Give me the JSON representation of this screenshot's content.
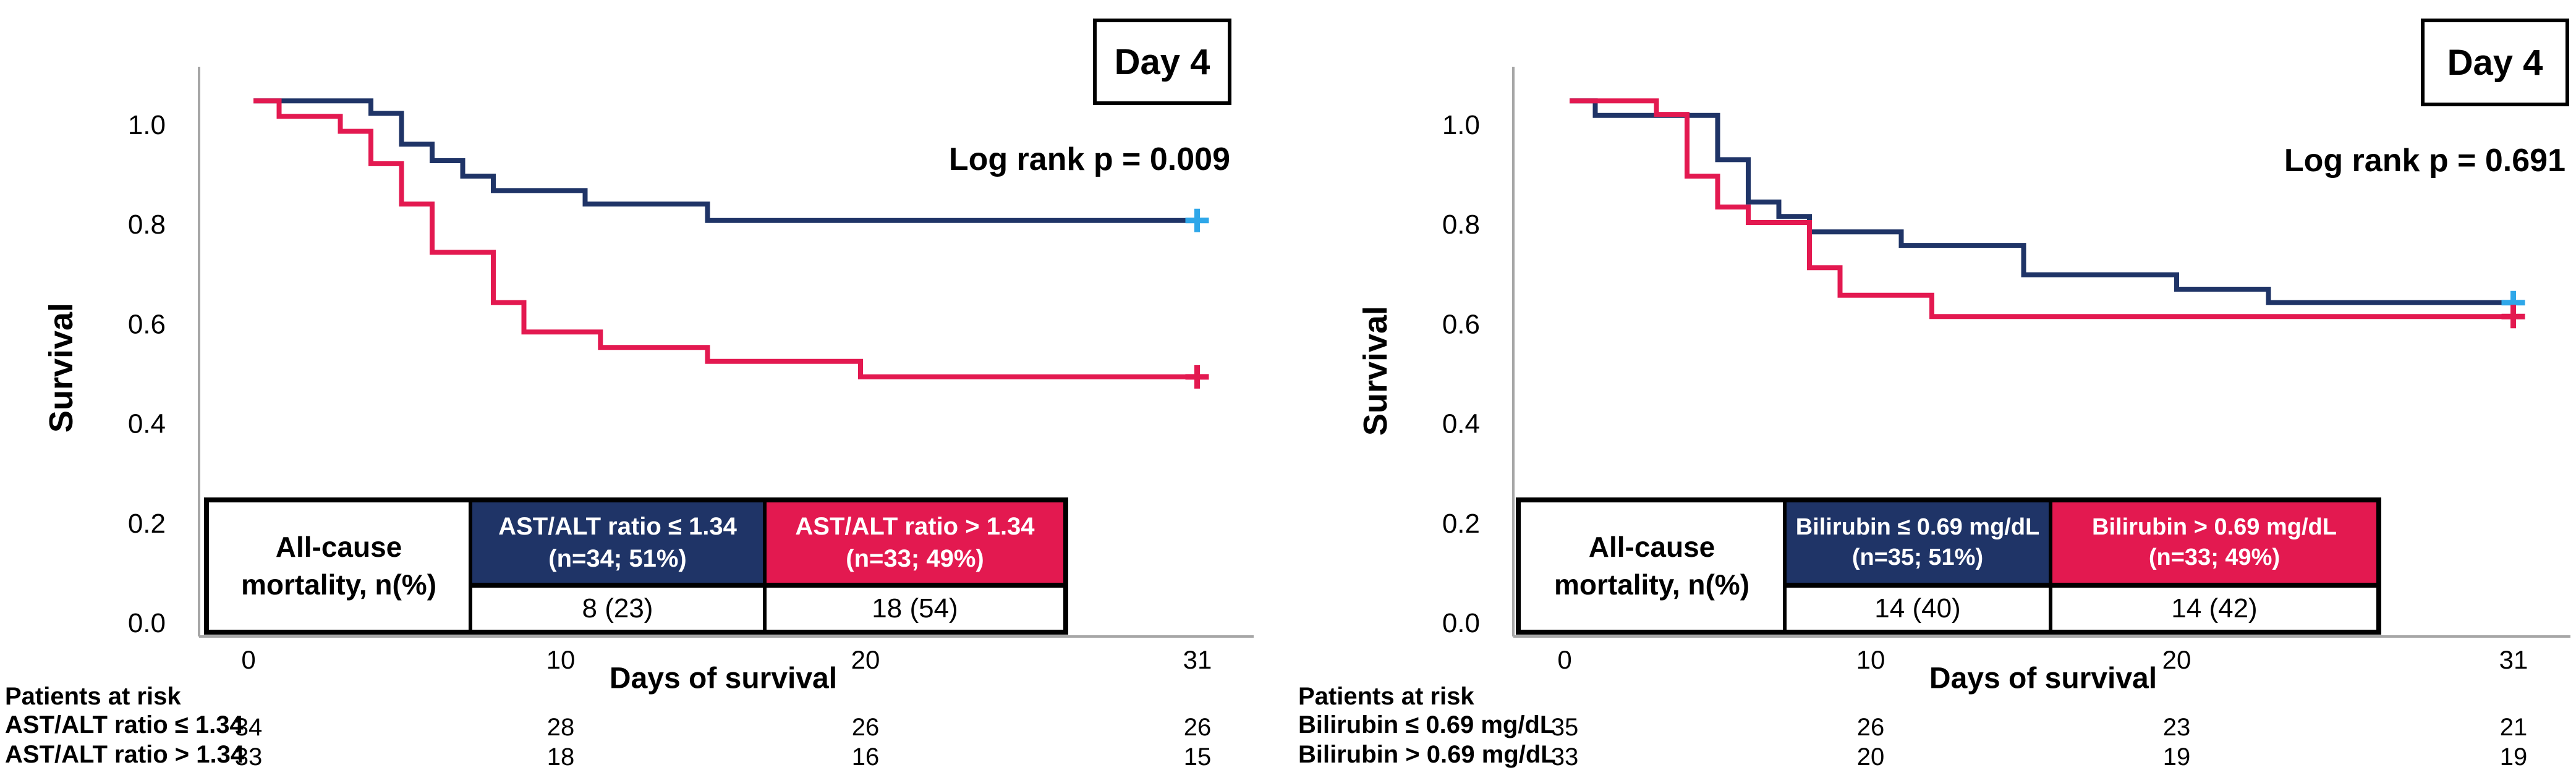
{
  "chart_data": {
    "type": "line",
    "subtype": "kaplan_meier_step",
    "colors": {
      "navy": "#1F3467",
      "crimson": "#E31950",
      "censor_blue": "#2EA7E9",
      "axis_gray": "#A6A6A6"
    },
    "panels": [
      {
        "day_label": "Day 4",
        "log_rank": "Log rank p = 0.009",
        "ylabel": "Survival",
        "xlabel": "Days of survival",
        "ytick_labels": [
          "1.0",
          "0.8",
          "0.6",
          "0.4",
          "0.2",
          "0.0"
        ],
        "ytick_values": [
          1.0,
          0.8,
          0.6,
          0.4,
          0.2,
          0.0
        ],
        "xtick_labels": [
          "0",
          "10",
          "20",
          "31"
        ],
        "xtick_values": [
          0,
          10,
          20,
          31
        ],
        "at_risk_title": "Patients at risk",
        "series": [
          {
            "name": "AST/ALT ratio ≤ 1.34",
            "color_key": "navy",
            "start_level": 1.048,
            "steps": [
              [
                4,
                1.023
              ],
              [
                5,
                0.961
              ],
              [
                6,
                0.928
              ],
              [
                7,
                0.897
              ],
              [
                8,
                0.868
              ],
              [
                11,
                0.841
              ],
              [
                15,
                0.808
              ]
            ],
            "end_day": 31,
            "censored_at_end": true,
            "at_risk": [
              "34",
              "28",
              "26",
              "26"
            ]
          },
          {
            "name": "AST/ALT ratio > 1.34",
            "color_key": "crimson",
            "start_level": 1.048,
            "steps": [
              [
                1,
                1.017
              ],
              [
                3,
                0.987
              ],
              [
                4,
                0.922
              ],
              [
                5,
                0.841
              ],
              [
                6,
                0.744
              ],
              [
                8,
                0.643
              ],
              [
                9,
                0.584
              ],
              [
                11.5,
                0.553
              ],
              [
                15,
                0.525
              ],
              [
                20,
                0.494
              ]
            ],
            "end_day": 31,
            "censored_at_end": true,
            "at_risk": [
              "33",
              "18",
              "16",
              "15"
            ]
          }
        ],
        "table": {
          "row_header_lines": [
            "All-cause",
            "mortality, n(%)"
          ],
          "col_headers": [
            {
              "lines": [
                "AST/ALT ratio ≤ 1.34",
                "(n=34; 51%)"
              ]
            },
            {
              "lines": [
                "AST/ALT ratio > 1.34",
                "(n=33; 49%)"
              ]
            }
          ],
          "values": [
            "8 (23)",
            "18 (54)"
          ]
        }
      },
      {
        "day_label": "Day 4",
        "log_rank": "Log rank p = 0.691",
        "ylabel": "Survival",
        "xlabel": "Days of survival",
        "ytick_labels": [
          "1.0",
          "0.8",
          "0.6",
          "0.4",
          "0.2",
          "0.0"
        ],
        "ytick_values": [
          1.0,
          0.8,
          0.6,
          0.4,
          0.2,
          0.0
        ],
        "xtick_labels": [
          "0",
          "10",
          "20",
          "31"
        ],
        "xtick_values": [
          0,
          10,
          20,
          31
        ],
        "at_risk_title": "Patients at risk",
        "series": [
          {
            "name": "Bilirubin ≤ 0.69 mg/dL",
            "color_key": "navy",
            "start_level": 1.048,
            "steps": [
              [
                1,
                1.019
              ],
              [
                5,
                0.93
              ],
              [
                6,
                0.845
              ],
              [
                7,
                0.816
              ],
              [
                8,
                0.785
              ],
              [
                11,
                0.758
              ],
              [
                15,
                0.699
              ],
              [
                20,
                0.67
              ],
              [
                23,
                0.643
              ]
            ],
            "end_day": 31,
            "censored_at_end": true,
            "at_risk": [
              "35",
              "26",
              "23",
              "21"
            ]
          },
          {
            "name": "Bilirubin > 0.69 mg/dL",
            "color_key": "crimson",
            "start_level": 1.048,
            "steps": [
              [
                3,
                1.021
              ],
              [
                4,
                0.897
              ],
              [
                5,
                0.835
              ],
              [
                6,
                0.804
              ],
              [
                8,
                0.713
              ],
              [
                9,
                0.658
              ],
              [
                12,
                0.615
              ]
            ],
            "end_day": 31,
            "censored_at_end": true,
            "at_risk": [
              "33",
              "20",
              "19",
              "19"
            ]
          }
        ],
        "table": {
          "row_header_lines": [
            "All-cause",
            "mortality, n(%)"
          ],
          "col_headers": [
            {
              "lines": [
                "Bilirubin ≤ 0.69 mg/dL",
                "(n=35; 51%)"
              ]
            },
            {
              "lines": [
                "Bilirubin > 0.69 mg/dL",
                "(n=33; 49%)"
              ]
            }
          ],
          "values": [
            "14 (40)",
            "14 (42)"
          ]
        }
      }
    ]
  }
}
